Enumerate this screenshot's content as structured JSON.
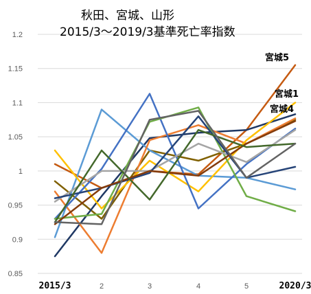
{
  "chart_data": {
    "type": "line",
    "title_line1": "秋田、宮城、山形",
    "title_line2": "2015/3～2019/3基準死亡率指数",
    "x_ticks": [
      "2015/3",
      "2",
      "3",
      "4",
      "5",
      "2020/3"
    ],
    "y_ticks": [
      "1.2",
      "1.15",
      "1.1",
      "1.05",
      "1",
      "0.95",
      "0.9",
      "0.85"
    ],
    "ylim": [
      0.85,
      1.2
    ],
    "grid": true,
    "legend": "none",
    "annotations": [
      "宮城5",
      "宮城1",
      "宮城4"
    ],
    "series": [
      {
        "name": "宮城5",
        "color": "#c55a11",
        "values": [
          1.01,
          0.975,
          1.0,
          0.995,
          1.06,
          1.155
        ]
      },
      {
        "name": "宮城1",
        "color": "#806000",
        "values": [
          0.985,
          0.93,
          1.03,
          1.015,
          1.04,
          1.075
        ]
      },
      {
        "name": "宮城4",
        "color": "#1f3864",
        "values": [
          0.875,
          0.963,
          1.048,
          1.056,
          1.06,
          1.083
        ]
      },
      {
        "color": "#5b9bd5",
        "values": [
          0.903,
          1.09,
          1.03,
          0.993,
          0.99,
          0.973
        ]
      },
      {
        "color": "#ed7d31",
        "values": [
          0.97,
          0.88,
          1.045,
          1.067,
          1.04,
          1.077
        ]
      },
      {
        "color": "#ffc000",
        "values": [
          1.03,
          0.945,
          1.015,
          0.97,
          1.045,
          1.1
        ]
      },
      {
        "color": "#4472c4",
        "values": [
          0.93,
          1.003,
          1.113,
          0.945,
          1.01,
          1.062
        ]
      },
      {
        "color": "#70ad47",
        "values": [
          0.93,
          0.937,
          1.072,
          1.093,
          0.963,
          0.941
        ]
      },
      {
        "color": "#a5a5a5",
        "values": [
          0.955,
          1.0,
          1.0,
          1.04,
          1.013,
          1.06
        ]
      },
      {
        "color": "#264478",
        "values": [
          0.96,
          0.975,
          0.997,
          1.08,
          0.99,
          1.006
        ]
      },
      {
        "color": "#843c0c",
        "values": [
          0.922,
          0.975,
          1.0,
          0.993,
          1.04,
          1.073
        ]
      },
      {
        "color": "#43682b",
        "values": [
          0.925,
          1.03,
          0.958,
          1.06,
          1.035,
          1.04
        ]
      },
      {
        "color": "#636363",
        "values": [
          0.925,
          0.922,
          1.075,
          1.088,
          0.99,
          1.04
        ]
      }
    ]
  }
}
